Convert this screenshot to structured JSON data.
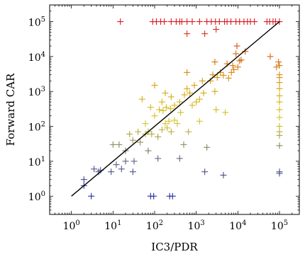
{
  "chart_data": {
    "type": "scatter",
    "title": "",
    "xlabel": "IC3/PDR",
    "ylabel": "Forward CAR",
    "xscale": "log",
    "yscale": "log",
    "xlim": [
      0.3,
      300000
    ],
    "ylim": [
      0.3,
      300000
    ],
    "grid": false,
    "legend": "none",
    "marker": "plus",
    "color_scale": "blue (low) to yellow to red (high), by Forward CAR",
    "x_ticks": [
      {
        "value": 1,
        "base": "10",
        "exp": "0"
      },
      {
        "value": 10,
        "base": "10",
        "exp": "1"
      },
      {
        "value": 100,
        "base": "10",
        "exp": "2"
      },
      {
        "value": 1000,
        "base": "10",
        "exp": "3"
      },
      {
        "value": 10000,
        "base": "10",
        "exp": "4"
      },
      {
        "value": 100000,
        "base": "10",
        "exp": "5"
      }
    ],
    "y_ticks": [
      {
        "value": 1,
        "base": "10",
        "exp": "0"
      },
      {
        "value": 10,
        "base": "10",
        "exp": "1"
      },
      {
        "value": 100,
        "base": "10",
        "exp": "2"
      },
      {
        "value": 1000,
        "base": "10",
        "exp": "3"
      },
      {
        "value": 10000,
        "base": "10",
        "exp": "4"
      },
      {
        "value": 100000,
        "base": "10",
        "exp": "5"
      }
    ],
    "reference_line": {
      "x": [
        1,
        100000
      ],
      "y": [
        1,
        100000
      ]
    },
    "points": [
      [
        2,
        3
      ],
      [
        3.5,
        6
      ],
      [
        4.5,
        5
      ],
      [
        5,
        5.5
      ],
      [
        9,
        5
      ],
      [
        12,
        8
      ],
      [
        16,
        6
      ],
      [
        30,
        5
      ],
      [
        3,
        1
      ],
      [
        2,
        2
      ],
      [
        80,
        1
      ],
      [
        95,
        1
      ],
      [
        230,
        1
      ],
      [
        270,
        1
      ],
      [
        1600,
        5
      ],
      [
        4500,
        4
      ],
      [
        100000,
        4.5
      ],
      [
        100000,
        5
      ],
      [
        20,
        10
      ],
      [
        32,
        10
      ],
      [
        14,
        30
      ],
      [
        20,
        20
      ],
      [
        30,
        40
      ],
      [
        45,
        35
      ],
      [
        60,
        60
      ],
      [
        70,
        70
      ],
      [
        85,
        60
      ],
      [
        120,
        50
      ],
      [
        150,
        80
      ],
      [
        200,
        90
      ],
      [
        250,
        70
      ],
      [
        180,
        120
      ],
      [
        220,
        140
      ],
      [
        300,
        150
      ],
      [
        350,
        120
      ],
      [
        25,
        60
      ],
      [
        40,
        70
      ],
      [
        10,
        30
      ],
      [
        60,
        120
      ],
      [
        100,
        200
      ],
      [
        130,
        300
      ],
      [
        160,
        280
      ],
      [
        190,
        350
      ],
      [
        240,
        320
      ],
      [
        300,
        400
      ],
      [
        400,
        500
      ],
      [
        520,
        800
      ],
      [
        600,
        1200
      ],
      [
        700,
        900
      ],
      [
        420,
        250
      ],
      [
        1000,
        500
      ],
      [
        1200,
        600
      ],
      [
        1500,
        900
      ],
      [
        800,
        400
      ],
      [
        2200,
        2000
      ],
      [
        2800,
        1000
      ],
      [
        900,
        1500
      ],
      [
        1400,
        2000
      ],
      [
        2500,
        3000
      ],
      [
        3200,
        2500
      ],
      [
        3800,
        3500
      ],
      [
        4500,
        2900
      ],
      [
        6000,
        2400
      ],
      [
        7000,
        3500
      ],
      [
        8000,
        4200
      ],
      [
        10000,
        5000
      ],
      [
        12000,
        8000
      ],
      [
        7500,
        5500
      ],
      [
        9000,
        12000
      ],
      [
        11000,
        7500
      ],
      [
        15000,
        14000
      ],
      [
        5500,
        6200
      ],
      [
        100,
        1500
      ],
      [
        180,
        900
      ],
      [
        250,
        700
      ],
      [
        50,
        600
      ],
      [
        80,
        350
      ],
      [
        600,
        3500
      ],
      [
        2800,
        7000
      ],
      [
        9500,
        20000
      ],
      [
        3000,
        300
      ],
      [
        5000,
        250
      ],
      [
        1200,
        140
      ],
      [
        650,
        70
      ],
      [
        1800,
        25
      ],
      [
        400,
        12
      ],
      [
        120,
        12
      ],
      [
        70,
        20
      ],
      [
        500,
        30
      ],
      [
        150,
        500
      ],
      [
        60000,
        10000
      ],
      [
        85000,
        5000
      ],
      [
        95000,
        7000
      ],
      [
        100000,
        3000
      ],
      [
        100000,
        1800
      ],
      [
        100000,
        1200
      ],
      [
        100000,
        750
      ],
      [
        100000,
        500
      ],
      [
        100000,
        300
      ],
      [
        100000,
        180
      ],
      [
        100000,
        100
      ],
      [
        100000,
        70
      ],
      [
        100000,
        55
      ],
      [
        100000,
        28
      ],
      [
        100000,
        5500
      ],
      [
        100000,
        2500
      ],
      [
        15,
        100000
      ],
      [
        90,
        100000
      ],
      [
        110,
        100000
      ],
      [
        140,
        100000
      ],
      [
        170,
        100000
      ],
      [
        250,
        100000
      ],
      [
        330,
        100000
      ],
      [
        400,
        100000
      ],
      [
        450,
        100000
      ],
      [
        600,
        100000
      ],
      [
        800,
        100000
      ],
      [
        1200,
        100000
      ],
      [
        1800,
        100000
      ],
      [
        2300,
        100000
      ],
      [
        2900,
        100000
      ],
      [
        3600,
        100000
      ],
      [
        4800,
        100000
      ],
      [
        5500,
        100000
      ],
      [
        6800,
        100000
      ],
      [
        9000,
        100000
      ],
      [
        11000,
        100000
      ],
      [
        14000,
        100000
      ],
      [
        17000,
        100000
      ],
      [
        20000,
        100000
      ],
      [
        25000,
        100000
      ],
      [
        50000,
        100000
      ],
      [
        58000,
        100000
      ],
      [
        70000,
        100000
      ],
      [
        80000,
        100000
      ],
      [
        100000,
        100000
      ],
      [
        600,
        45000
      ],
      [
        1600,
        45000
      ],
      [
        3000,
        60000
      ]
    ]
  }
}
